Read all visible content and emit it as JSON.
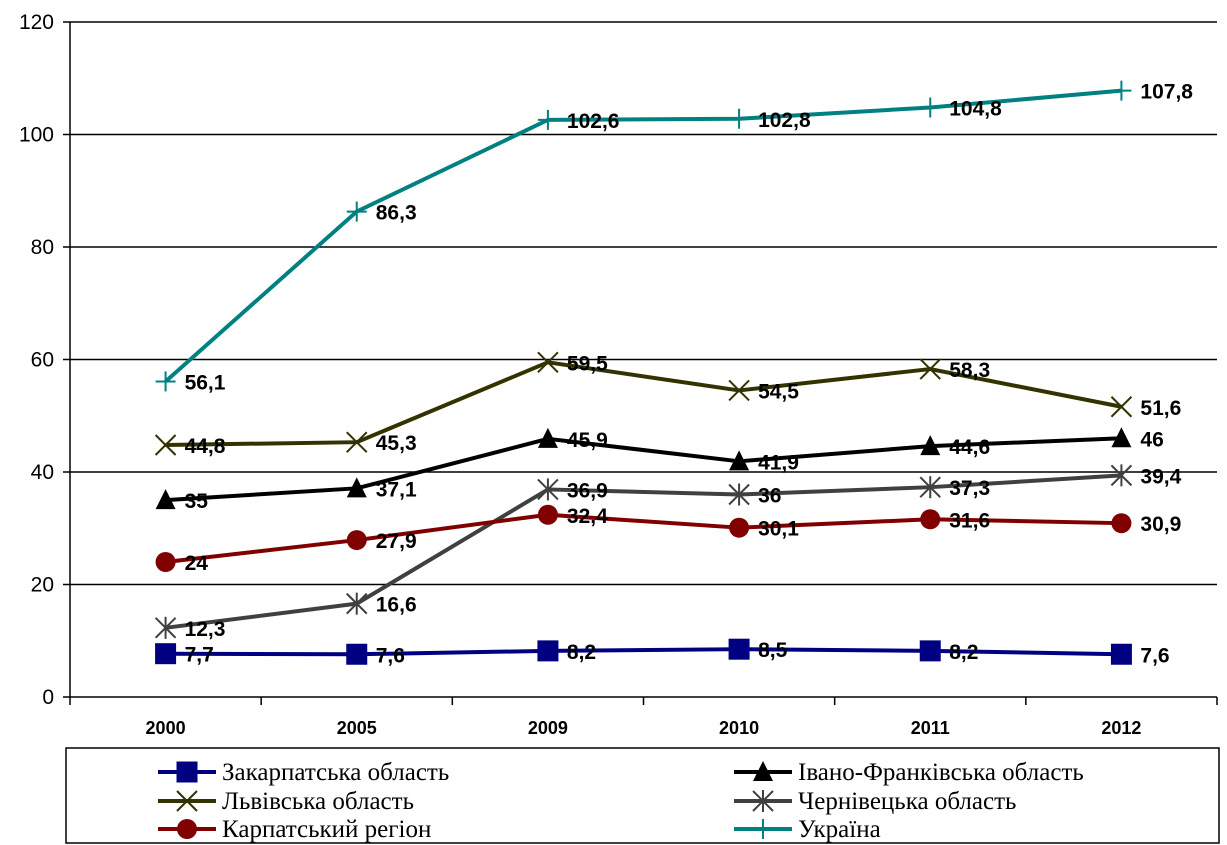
{
  "chart_data": {
    "type": "line",
    "categories": [
      "2000",
      "2005",
      "2009",
      "2010",
      "2011",
      "2012"
    ],
    "ylim": [
      0,
      120
    ],
    "yticks": [
      0,
      20,
      40,
      60,
      80,
      100,
      120
    ],
    "grid": true,
    "legend_position": "bottom",
    "series": [
      {
        "name": "Закарпатська область",
        "color": "#000080",
        "marker": "square",
        "values": [
          7.7,
          7.6,
          8.2,
          8.5,
          8.2,
          7.6
        ],
        "labels": [
          "7,7",
          "7,6",
          "8,2",
          "8,5",
          "8,2",
          "7,6"
        ]
      },
      {
        "name": "Івано-Франківська область",
        "color": "#000000",
        "marker": "triangle",
        "values": [
          35,
          37.1,
          45.9,
          41.9,
          44.6,
          46
        ],
        "labels": [
          "35",
          "37,1",
          "45,9",
          "41,9",
          "44,6",
          "46"
        ]
      },
      {
        "name": "Львівська область",
        "color": "#333300",
        "marker": "x",
        "values": [
          44.8,
          45.3,
          59.5,
          54.5,
          58.3,
          51.6
        ],
        "labels": [
          "44,8",
          "45,3",
          "59,5",
          "54,5",
          "58,3",
          "51,6"
        ]
      },
      {
        "name": "Чернівецька область",
        "color": "#404040",
        "marker": "asterisk",
        "values": [
          12.3,
          16.6,
          36.9,
          36,
          37.3,
          39.4
        ],
        "labels": [
          "12,3",
          "16,6",
          "36,9",
          "36",
          "37,3",
          "39,4"
        ]
      },
      {
        "name": "Карпатський регіон",
        "color": "#800000",
        "marker": "circle",
        "values": [
          24,
          27.9,
          32.4,
          30.1,
          31.6,
          30.9
        ],
        "labels": [
          "24",
          "27,9",
          "32,4",
          "30,1",
          "31,6",
          "30,9"
        ]
      },
      {
        "name": "Україна",
        "color": "#008080",
        "marker": "plus",
        "values": [
          56.1,
          86.3,
          102.6,
          102.8,
          104.8,
          107.8
        ],
        "labels": [
          "56,1",
          "86,3",
          "102,6",
          "102,8",
          "104,8",
          "107,8"
        ]
      }
    ]
  }
}
